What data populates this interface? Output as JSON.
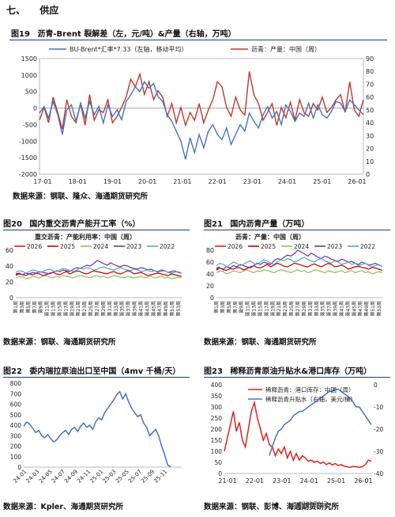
{
  "section": {
    "number": "七、",
    "title": "供应"
  },
  "watermark": "@新浪财经",
  "charts": [
    {
      "id": "c19",
      "figure": "图19",
      "title": "沥青-Brent 裂解差（左，元/吨）&产量（右轴，万吨）",
      "source": "数据来源：钢联、隆众、海通期货研究所",
      "type": "line",
      "series": [
        {
          "name": "BU-Brent*汇率*7.33（左轴，移动平均）",
          "color": "#4472c4",
          "axis": "left",
          "y": [
            -150,
            50,
            -300,
            200,
            -200,
            -800,
            -50,
            100,
            -400,
            150,
            -300,
            200,
            -200,
            50,
            -450,
            100,
            -250,
            -50,
            -350,
            200,
            400,
            650,
            500,
            800,
            600,
            750,
            350,
            200,
            -200,
            -400,
            -700,
            -1000,
            -1550,
            -900,
            -1350,
            -800,
            -1200,
            -700,
            -500,
            -800,
            -950,
            -600,
            -1100,
            -800,
            -500,
            -700,
            -150,
            -400,
            -600,
            -200,
            50,
            -300,
            -100,
            -500,
            100,
            -100,
            -400,
            -150,
            -250,
            150,
            -300,
            100,
            -200,
            -300,
            -100,
            200,
            150,
            -100,
            250,
            100,
            -50,
            -200
          ]
        },
        {
          "name": "沥青：产量：中国（周）",
          "color": "#c0392b",
          "axis": "right",
          "y": [
            42,
            52,
            40,
            60,
            48,
            35,
            58,
            45,
            40,
            55,
            38,
            62,
            42,
            50,
            48,
            58,
            40,
            45,
            52,
            60,
            74,
            68,
            78,
            62,
            72,
            58,
            65,
            60,
            45,
            55,
            40,
            52,
            38,
            48,
            42,
            55,
            40,
            50,
            58,
            72,
            68,
            52,
            45,
            60,
            50,
            46,
            80,
            62,
            55,
            42,
            48,
            55,
            38,
            52,
            44,
            56,
            42,
            58,
            48,
            45,
            55,
            50,
            60,
            48,
            52,
            58,
            62,
            48,
            72,
            50,
            45,
            58
          ]
        }
      ],
      "x_ticks": [
        "17-01",
        "18-01",
        "19-01",
        "20-01",
        "21-01",
        "22-01",
        "23-01",
        "24-01",
        "25-01",
        "26-01"
      ],
      "ylim_left": [
        -2000,
        1500
      ],
      "ylim_right": [
        0,
        90
      ],
      "y_ticks_left": [
        -2000,
        -1500,
        -1000,
        -500,
        0,
        500,
        1000,
        1500
      ],
      "y_ticks_right": [
        0,
        10,
        20,
        30,
        40,
        50,
        60,
        70,
        80,
        90
      ],
      "legend_placement": "top"
    },
    {
      "id": "c20",
      "figure": "图20",
      "title": "国内重交沥青产能开工率（%）",
      "subtitle": "重交沥青：产能利用率：中国（周）",
      "source": "数据来源：钢联、海通期货研究所",
      "type": "line",
      "ylim": [
        0,
        60
      ],
      "y_ticks": [
        0,
        20,
        40,
        60
      ],
      "x_ticks": [
        "第1周",
        "第3周",
        "第5周",
        "第7周",
        "第9周",
        "第11周",
        "第13周",
        "第15周",
        "第17周",
        "第19周",
        "第21周",
        "第23周",
        "第25周",
        "第27周",
        "第29周",
        "第31周",
        "第33周",
        "第35周",
        "第37周",
        "第39周",
        "第41周",
        "第43周",
        "第45周",
        "第47周",
        "第49周",
        "第51周",
        "第53周"
      ],
      "series": [
        {
          "name": "2026",
          "color": "#e02020",
          "y": [
            29,
            30
          ]
        },
        {
          "name": "2025",
          "color": "#c00000",
          "y": [
            30,
            31,
            29,
            28,
            30,
            29,
            31,
            30,
            28,
            29,
            31,
            32,
            30,
            29,
            31,
            33,
            30,
            32,
            34,
            33,
            31,
            30,
            32,
            34,
            33,
            32,
            31,
            30,
            32,
            33,
            31,
            30,
            32,
            34,
            33,
            30,
            31,
            32,
            30,
            28,
            29,
            30,
            31,
            30,
            29,
            28,
            30,
            29,
            28,
            27
          ]
        },
        {
          "name": "2024",
          "color": "#9bbb59",
          "y": [
            25,
            27,
            26,
            24,
            25,
            27,
            26,
            25,
            27,
            28,
            26,
            25,
            27,
            26,
            28,
            27,
            26,
            25,
            27,
            28,
            27,
            26,
            25,
            27,
            28,
            26,
            27,
            25,
            26,
            28,
            27,
            26,
            25,
            27,
            26,
            25,
            26,
            27,
            25,
            26,
            27,
            25,
            26,
            27,
            25,
            26,
            24,
            25,
            26,
            25
          ]
        },
        {
          "name": "2023",
          "color": "#7030a0",
          "y": [
            28,
            30,
            29,
            31,
            30,
            32,
            31,
            33,
            32,
            31,
            30,
            32,
            34,
            33,
            35,
            34,
            33,
            36,
            38,
            37,
            39,
            41,
            40,
            43,
            47,
            45,
            43,
            41,
            44,
            42,
            40,
            39,
            41,
            40,
            38,
            37,
            36,
            38,
            37,
            35,
            36,
            34,
            33,
            35,
            34,
            32,
            33,
            34,
            32,
            31
          ]
        },
        {
          "name": "2022",
          "color": "#4bacc6",
          "y": [
            32,
            34,
            33,
            31,
            33,
            35,
            34,
            32,
            33,
            35,
            36,
            34,
            33,
            35,
            37,
            36,
            34,
            33,
            35,
            37,
            36,
            38,
            37,
            35,
            36,
            38,
            39,
            37,
            36,
            35,
            37,
            38,
            36,
            35,
            34,
            36,
            35,
            33,
            34,
            35,
            33,
            34,
            32,
            33,
            34,
            32,
            31,
            32,
            33,
            31
          ]
        }
      ]
    },
    {
      "id": "c21",
      "figure": "图21",
      "title": "国内沥青产量（万吨）",
      "subtitle": "沥青：产量：中国（周）",
      "source": "数据来源：钢联、海通期货研究所",
      "type": "line",
      "ylim": [
        0,
        80
      ],
      "y_ticks": [
        0,
        20,
        40,
        60,
        80
      ],
      "x_ticks": [
        "第1周",
        "第3周",
        "第5周",
        "第7周",
        "第9周",
        "第11周",
        "第13周",
        "第15周",
        "第17周",
        "第19周",
        "第21周",
        "第23周",
        "第25周",
        "第27周",
        "第29周",
        "第31周",
        "第33周",
        "第35周",
        "第37周",
        "第39周",
        "第41周",
        "第43周",
        "第45周",
        "第47周",
        "第49周",
        "第51周",
        "第53周"
      ],
      "series": [
        {
          "name": "2026",
          "color": "#e02020",
          "y": [
            50,
            52
          ]
        },
        {
          "name": "2025",
          "color": "#c00000",
          "y": [
            48,
            50,
            47,
            46,
            49,
            48,
            51,
            50,
            47,
            49,
            52,
            54,
            51,
            50,
            53,
            56,
            52,
            55,
            58,
            56,
            53,
            52,
            55,
            58,
            57,
            55,
            53,
            52,
            55,
            57,
            54,
            52,
            55,
            58,
            56,
            52,
            53,
            55,
            52,
            48,
            50,
            52,
            53,
            51,
            50,
            48,
            51,
            50,
            48,
            46
          ]
        },
        {
          "name": "2024",
          "color": "#9bbb59",
          "y": [
            42,
            45,
            44,
            40,
            42,
            45,
            44,
            42,
            45,
            47,
            44,
            42,
            45,
            44,
            47,
            46,
            44,
            42,
            45,
            47,
            46,
            44,
            42,
            45,
            47,
            44,
            46,
            42,
            44,
            47,
            46,
            44,
            42,
            45,
            44,
            42,
            44,
            46,
            42,
            44,
            46,
            42,
            44,
            46,
            42,
            44,
            40,
            42,
            44,
            42
          ]
        },
        {
          "name": "2023",
          "color": "#7030a0",
          "y": [
            46,
            50,
            48,
            52,
            50,
            54,
            52,
            56,
            54,
            52,
            50,
            54,
            58,
            56,
            60,
            58,
            56,
            62,
            66,
            64,
            68,
            72,
            70,
            74,
            80,
            77,
            74,
            70,
            75,
            72,
            68,
            66,
            70,
            68,
            65,
            63,
            61,
            65,
            63,
            60,
            61,
            58,
            56,
            60,
            58,
            55,
            56,
            58,
            55,
            53
          ]
        },
        {
          "name": "2022",
          "color": "#4bacc6",
          "y": [
            54,
            58,
            56,
            52,
            56,
            60,
            58,
            54,
            56,
            60,
            62,
            58,
            56,
            60,
            64,
            62,
            58,
            56,
            60,
            64,
            62,
            66,
            64,
            60,
            62,
            66,
            68,
            64,
            62,
            60,
            64,
            66,
            62,
            60,
            58,
            62,
            60,
            56,
            58,
            60,
            56,
            58,
            54,
            56,
            58,
            54,
            52,
            54,
            56,
            52
          ]
        }
      ]
    },
    {
      "id": "c22",
      "figure": "图22",
      "title": "委内瑞拉原油出口至中国（4mv 千桶/天）",
      "source": "数据来源：Kpler、海通期货研究所",
      "type": "line",
      "ylim": [
        0,
        800
      ],
      "y_ticks": [
        0,
        100,
        200,
        300,
        400,
        500,
        600,
        700,
        800
      ],
      "x_ticks": [
        "24-01",
        "24-03",
        "24-05",
        "24-07",
        "24-09",
        "24-11",
        "25-01",
        "25-03",
        "25-05",
        "25-07",
        "25-09",
        "25-11"
      ],
      "series": [
        {
          "name": "",
          "color": "#4472c4",
          "y": [
            390,
            430,
            410,
            370,
            330,
            350,
            300,
            280,
            310,
            270,
            240,
            260,
            300,
            330,
            350,
            310,
            360,
            380,
            340,
            390,
            420,
            380,
            400,
            360,
            430,
            470,
            450,
            520,
            560,
            600,
            640,
            690,
            720,
            650,
            700,
            620,
            560,
            520,
            480,
            500,
            420,
            380,
            300,
            330,
            360,
            300,
            200,
            120,
            20,
            5
          ]
        }
      ]
    },
    {
      "id": "c23",
      "figure": "图23",
      "title": "稀释沥青原油升贴水&港口库存（万吨）",
      "source": "数据来源：钢联、彭博、海通期货研究所",
      "type": "line",
      "ylim_left": [
        0,
        400
      ],
      "ylim_right": [
        -40,
        0
      ],
      "y_ticks_left": [
        0,
        50,
        100,
        150,
        200,
        250,
        300,
        350,
        400
      ],
      "y_ticks_right": [
        -40,
        -30,
        -20,
        -10,
        0
      ],
      "x_ticks": [
        "21-01",
        "22-01",
        "23-01",
        "24-01",
        "25-01",
        "26-01"
      ],
      "series": [
        {
          "name": "稀释沥青：港口库存：中国（周）",
          "color": "#e02020",
          "axis": "left",
          "y": [
            100,
            160,
            220,
            280,
            190,
            230,
            150,
            120,
            200,
            280,
            320,
            250,
            200,
            150,
            180,
            130,
            120,
            80,
            110,
            90,
            120,
            70,
            100,
            60,
            90,
            60,
            80,
            70,
            55,
            60,
            50,
            55,
            45,
            52,
            40,
            48,
            38,
            45,
            35,
            40,
            32,
            30,
            28,
            32,
            30,
            28,
            30,
            40,
            60,
            55
          ]
        },
        {
          "name": "稀释沥青升贴水（右轴，美元/桶）",
          "color": "#4472c4",
          "axis": "right",
          "y": [
            null,
            null,
            null,
            null,
            null,
            null,
            null,
            null,
            null,
            null,
            null,
            null,
            null,
            null,
            null,
            -32,
            -28,
            -24,
            -21,
            -20,
            -18,
            -17,
            -16,
            -14,
            -13,
            -12,
            -12,
            -11,
            -10,
            -9,
            -8,
            -7,
            -6,
            -5,
            -4,
            -3,
            -3,
            -2,
            -2,
            -3,
            -4,
            -5,
            -6,
            -8,
            -10,
            -10,
            -12,
            -14,
            -16,
            -18
          ]
        }
      ]
    }
  ]
}
